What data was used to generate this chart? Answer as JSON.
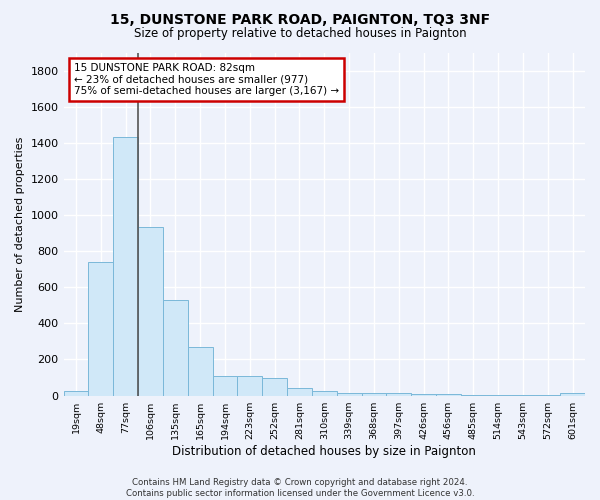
{
  "title1": "15, DUNSTONE PARK ROAD, PAIGNTON, TQ3 3NF",
  "title2": "Size of property relative to detached houses in Paignton",
  "xlabel": "Distribution of detached houses by size in Paignton",
  "ylabel": "Number of detached properties",
  "bins": [
    "19sqm",
    "48sqm",
    "77sqm",
    "106sqm",
    "135sqm",
    "165sqm",
    "194sqm",
    "223sqm",
    "252sqm",
    "281sqm",
    "310sqm",
    "339sqm",
    "368sqm",
    "397sqm",
    "426sqm",
    "456sqm",
    "485sqm",
    "514sqm",
    "543sqm",
    "572sqm",
    "601sqm"
  ],
  "values": [
    25,
    740,
    1430,
    935,
    530,
    270,
    110,
    110,
    95,
    42,
    25,
    15,
    15,
    12,
    10,
    8,
    5,
    5,
    3,
    2,
    12
  ],
  "bar_color": "#d0e8f8",
  "bar_edge_color": "#7ab8d9",
  "vline_x_index": 2,
  "vline_color": "#555555",
  "annotation_line1": "15 DUNSTONE PARK ROAD: 82sqm",
  "annotation_line2": "← 23% of detached houses are smaller (977)",
  "annotation_line3": "75% of semi-detached houses are larger (3,167) →",
  "annotation_box_facecolor": "#ffffff",
  "annotation_box_edgecolor": "#cc0000",
  "background_color": "#eef2fb",
  "grid_color": "#ffffff",
  "ylim": [
    0,
    1900
  ],
  "yticks": [
    0,
    200,
    400,
    600,
    800,
    1000,
    1200,
    1400,
    1600,
    1800
  ],
  "footnote1": "Contains HM Land Registry data © Crown copyright and database right 2024.",
  "footnote2": "Contains public sector information licensed under the Government Licence v3.0."
}
